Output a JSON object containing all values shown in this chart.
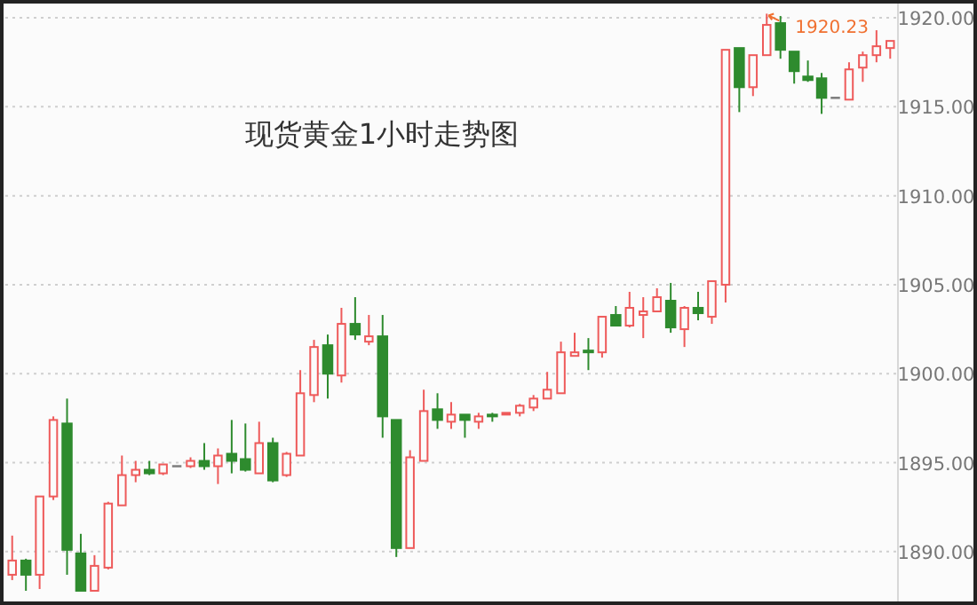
{
  "chart_data": {
    "type": "candlestick",
    "title": "现货黄金1小时走势图",
    "categories": [
      null,
      null,
      null,
      null,
      null,
      null,
      null,
      null,
      null,
      null,
      null,
      null,
      null,
      null,
      null,
      null,
      null,
      null,
      null,
      null,
      null,
      null,
      null,
      null,
      null,
      null,
      null,
      null,
      null,
      null,
      null,
      null,
      null,
      null,
      null,
      null,
      null,
      null,
      null,
      null,
      null,
      null,
      null,
      null,
      null,
      null,
      null,
      null,
      null,
      null,
      null,
      null,
      null,
      null,
      null,
      null,
      null,
      null,
      null,
      null,
      null,
      null,
      null,
      null,
      null
    ],
    "ohlc": [
      [
        1888.7,
        1890.9,
        1888.4,
        1889.5
      ],
      [
        1889.5,
        1889.6,
        1887.8,
        1888.7
      ],
      [
        1888.7,
        1893.1,
        1887.9,
        1893.1
      ],
      [
        1893.1,
        1897.6,
        1892.9,
        1897.4
      ],
      [
        1897.2,
        1898.6,
        1888.7,
        1890.1
      ],
      [
        1889.9,
        1891.0,
        1887.8,
        1887.8
      ],
      [
        1887.8,
        1889.8,
        1887.8,
        1889.2
      ],
      [
        1889.1,
        1892.8,
        1889.0,
        1892.7
      ],
      [
        1892.6,
        1895.4,
        1892.6,
        1894.3
      ],
      [
        1894.3,
        1895.1,
        1893.9,
        1894.6
      ],
      [
        1894.6,
        1895.1,
        1894.3,
        1894.4
      ],
      [
        1894.4,
        1894.9,
        1894.3,
        1894.9
      ],
      [
        1894.8,
        1894.8,
        1894.8,
        1894.8
      ],
      [
        1894.8,
        1895.3,
        1894.7,
        1895.1
      ],
      [
        1895.1,
        1896.1,
        1894.6,
        1894.8
      ],
      [
        1894.8,
        1895.8,
        1893.8,
        1895.4
      ],
      [
        1895.5,
        1897.4,
        1894.4,
        1895.1
      ],
      [
        1895.2,
        1897.2,
        1894.5,
        1894.6
      ],
      [
        1894.4,
        1897.3,
        1894.4,
        1896.1
      ],
      [
        1896.1,
        1896.4,
        1893.9,
        1894.0
      ],
      [
        1894.3,
        1895.6,
        1894.2,
        1895.5
      ],
      [
        1895.4,
        1900.2,
        1895.4,
        1898.9
      ],
      [
        1898.8,
        1901.9,
        1898.4,
        1901.5
      ],
      [
        1901.6,
        1902.2,
        1898.6,
        1900.0
      ],
      [
        1899.9,
        1903.7,
        1899.5,
        1902.8
      ],
      [
        1902.8,
        1904.3,
        1901.9,
        1902.2
      ],
      [
        1901.8,
        1903.3,
        1901.6,
        1902.1
      ],
      [
        1902.1,
        1903.3,
        1896.4,
        1897.6
      ],
      [
        1897.4,
        1897.4,
        1889.7,
        1890.2
      ],
      [
        1890.2,
        1895.7,
        1890.2,
        1895.3
      ],
      [
        1895.1,
        1899.1,
        1895.1,
        1897.9
      ],
      [
        1898.0,
        1898.9,
        1896.9,
        1897.4
      ],
      [
        1897.3,
        1898.4,
        1896.9,
        1897.7
      ],
      [
        1897.7,
        1897.7,
        1896.4,
        1897.4
      ],
      [
        1897.3,
        1897.8,
        1896.9,
        1897.6
      ],
      [
        1897.7,
        1897.8,
        1897.3,
        1897.6
      ],
      [
        1897.7,
        1897.8,
        1897.7,
        1897.8
      ],
      [
        1897.8,
        1898.3,
        1897.6,
        1898.2
      ],
      [
        1898.1,
        1898.8,
        1897.9,
        1898.6
      ],
      [
        1898.6,
        1900.1,
        1898.6,
        1899.1
      ],
      [
        1898.9,
        1901.8,
        1898.9,
        1901.2
      ],
      [
        1901.0,
        1902.3,
        1901.0,
        1901.2
      ],
      [
        1901.3,
        1902.0,
        1900.2,
        1901.2
      ],
      [
        1901.2,
        1903.2,
        1900.9,
        1903.2
      ],
      [
        1903.3,
        1903.8,
        1902.7,
        1902.7
      ],
      [
        1902.7,
        1904.6,
        1902.6,
        1903.7
      ],
      [
        1903.3,
        1904.3,
        1902.0,
        1903.5
      ],
      [
        1903.5,
        1904.8,
        1903.5,
        1904.3
      ],
      [
        1904.1,
        1905.1,
        1902.3,
        1902.6
      ],
      [
        1902.5,
        1903.8,
        1901.5,
        1903.7
      ],
      [
        1903.7,
        1904.6,
        1903.0,
        1903.4
      ],
      [
        1903.2,
        1905.2,
        1902.8,
        1905.2
      ],
      [
        1905.0,
        1918.2,
        1904.0,
        1918.2
      ],
      [
        1918.3,
        1918.3,
        1914.7,
        1916.1
      ],
      [
        1916.1,
        1917.9,
        1915.6,
        1917.9
      ],
      [
        1917.9,
        1920.23,
        1917.9,
        1919.6
      ],
      [
        1919.7,
        1920.1,
        1917.7,
        1918.2
      ],
      [
        1918.1,
        1918.1,
        1916.3,
        1917.0
      ],
      [
        1916.7,
        1917.6,
        1916.4,
        1916.5
      ],
      [
        1916.6,
        1916.9,
        1914.6,
        1915.5
      ],
      [
        1915.5,
        1915.5,
        1915.5,
        1915.5
      ],
      [
        1915.4,
        1917.5,
        1915.4,
        1917.1
      ],
      [
        1917.2,
        1918.1,
        1916.4,
        1917.9
      ],
      [
        1917.9,
        1919.3,
        1917.5,
        1918.4
      ],
      [
        1918.3,
        1918.7,
        1917.7,
        1918.7
      ]
    ],
    "colors": [
      "#ee5a5a",
      "#2e8b2e",
      "#ee5a5a",
      "#ee5a5a",
      "#2e8b2e",
      "#2e8b2e",
      "#ee5a5a",
      "#ee5a5a",
      "#ee5a5a",
      "#ee5a5a",
      "#2e8b2e",
      "#ee5a5a",
      "#808080",
      "#ee5a5a",
      "#2e8b2e",
      "#ee5a5a",
      "#2e8b2e",
      "#2e8b2e",
      "#ee5a5a",
      "#2e8b2e",
      "#ee5a5a",
      "#ee5a5a",
      "#ee5a5a",
      "#2e8b2e",
      "#ee5a5a",
      "#2e8b2e",
      "#ee5a5a",
      "#2e8b2e",
      "#2e8b2e",
      "#ee5a5a",
      "#ee5a5a",
      "#2e8b2e",
      "#ee5a5a",
      "#2e8b2e",
      "#ee5a5a",
      "#2e8b2e",
      "#ee5a5a",
      "#ee5a5a",
      "#ee5a5a",
      "#ee5a5a",
      "#ee5a5a",
      "#ee5a5a",
      "#2e8b2e",
      "#ee5a5a",
      "#2e8b2e",
      "#ee5a5a",
      "#ee5a5a",
      "#ee5a5a",
      "#2e8b2e",
      "#ee5a5a",
      "#2e8b2e",
      "#ee5a5a",
      "#ee5a5a",
      "#2e8b2e",
      "#ee5a5a",
      "#ee5a5a",
      "#2e8b2e",
      "#2e8b2e",
      "#2e8b2e",
      "#2e8b2e",
      "#808080",
      "#ee5a5a",
      "#ee5a5a",
      "#ee5a5a",
      "#ee5a5a"
    ],
    "ylim": [
      1887.2,
      1920.8
    ],
    "yticks": [
      {
        "value": 1890,
        "label": "1890.00"
      },
      {
        "value": 1895,
        "label": "1895.00"
      },
      {
        "value": 1900,
        "label": "1900.00"
      },
      {
        "value": 1905,
        "label": "1905.00"
      },
      {
        "value": 1910,
        "label": "1910.00"
      },
      {
        "value": 1915,
        "label": "1915.00"
      },
      {
        "value": 1920,
        "label": "1920.00"
      }
    ],
    "grid": "y",
    "annotations": [
      "1920.23"
    ]
  }
}
